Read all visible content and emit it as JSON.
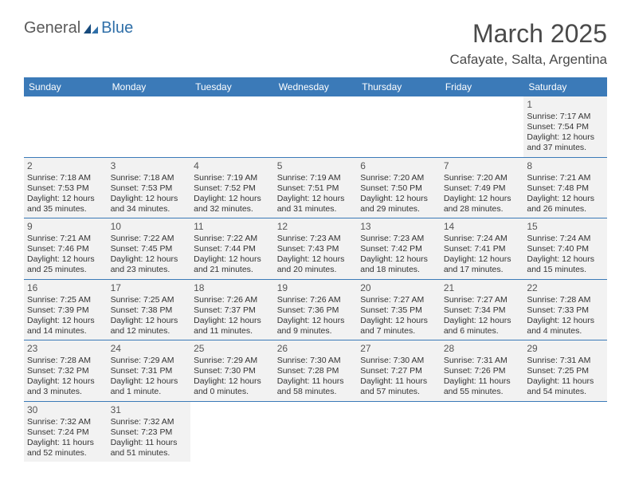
{
  "colors": {
    "header_bg": "#3b7ab8",
    "header_text": "#ffffff",
    "grid_line": "#3b7ab8",
    "cell_bg": "#f2f2f2",
    "page_bg": "#ffffff",
    "logo_general": "#5a5a5a",
    "logo_blue": "#2f6fa8",
    "title_color": "#4a4a4a",
    "text_color": "#333333"
  },
  "typography": {
    "title_fontsize": 32,
    "location_fontsize": 17,
    "dayheader_fontsize": 12,
    "cell_fontsize": 10.5,
    "daynum_fontsize": 12
  },
  "logo": {
    "general": "General",
    "blue": "Blue"
  },
  "title": "March 2025",
  "location": "Cafayate, Salta, Argentina",
  "day_names": [
    "Sunday",
    "Monday",
    "Tuesday",
    "Wednesday",
    "Thursday",
    "Friday",
    "Saturday"
  ],
  "weeks": [
    [
      null,
      null,
      null,
      null,
      null,
      null,
      {
        "d": "1",
        "sr": "Sunrise: 7:17 AM",
        "ss": "Sunset: 7:54 PM",
        "dl": "Daylight: 12 hours and 37 minutes."
      }
    ],
    [
      {
        "d": "2",
        "sr": "Sunrise: 7:18 AM",
        "ss": "Sunset: 7:53 PM",
        "dl": "Daylight: 12 hours and 35 minutes."
      },
      {
        "d": "3",
        "sr": "Sunrise: 7:18 AM",
        "ss": "Sunset: 7:53 PM",
        "dl": "Daylight: 12 hours and 34 minutes."
      },
      {
        "d": "4",
        "sr": "Sunrise: 7:19 AM",
        "ss": "Sunset: 7:52 PM",
        "dl": "Daylight: 12 hours and 32 minutes."
      },
      {
        "d": "5",
        "sr": "Sunrise: 7:19 AM",
        "ss": "Sunset: 7:51 PM",
        "dl": "Daylight: 12 hours and 31 minutes."
      },
      {
        "d": "6",
        "sr": "Sunrise: 7:20 AM",
        "ss": "Sunset: 7:50 PM",
        "dl": "Daylight: 12 hours and 29 minutes."
      },
      {
        "d": "7",
        "sr": "Sunrise: 7:20 AM",
        "ss": "Sunset: 7:49 PM",
        "dl": "Daylight: 12 hours and 28 minutes."
      },
      {
        "d": "8",
        "sr": "Sunrise: 7:21 AM",
        "ss": "Sunset: 7:48 PM",
        "dl": "Daylight: 12 hours and 26 minutes."
      }
    ],
    [
      {
        "d": "9",
        "sr": "Sunrise: 7:21 AM",
        "ss": "Sunset: 7:46 PM",
        "dl": "Daylight: 12 hours and 25 minutes."
      },
      {
        "d": "10",
        "sr": "Sunrise: 7:22 AM",
        "ss": "Sunset: 7:45 PM",
        "dl": "Daylight: 12 hours and 23 minutes."
      },
      {
        "d": "11",
        "sr": "Sunrise: 7:22 AM",
        "ss": "Sunset: 7:44 PM",
        "dl": "Daylight: 12 hours and 21 minutes."
      },
      {
        "d": "12",
        "sr": "Sunrise: 7:23 AM",
        "ss": "Sunset: 7:43 PM",
        "dl": "Daylight: 12 hours and 20 minutes."
      },
      {
        "d": "13",
        "sr": "Sunrise: 7:23 AM",
        "ss": "Sunset: 7:42 PM",
        "dl": "Daylight: 12 hours and 18 minutes."
      },
      {
        "d": "14",
        "sr": "Sunrise: 7:24 AM",
        "ss": "Sunset: 7:41 PM",
        "dl": "Daylight: 12 hours and 17 minutes."
      },
      {
        "d": "15",
        "sr": "Sunrise: 7:24 AM",
        "ss": "Sunset: 7:40 PM",
        "dl": "Daylight: 12 hours and 15 minutes."
      }
    ],
    [
      {
        "d": "16",
        "sr": "Sunrise: 7:25 AM",
        "ss": "Sunset: 7:39 PM",
        "dl": "Daylight: 12 hours and 14 minutes."
      },
      {
        "d": "17",
        "sr": "Sunrise: 7:25 AM",
        "ss": "Sunset: 7:38 PM",
        "dl": "Daylight: 12 hours and 12 minutes."
      },
      {
        "d": "18",
        "sr": "Sunrise: 7:26 AM",
        "ss": "Sunset: 7:37 PM",
        "dl": "Daylight: 12 hours and 11 minutes."
      },
      {
        "d": "19",
        "sr": "Sunrise: 7:26 AM",
        "ss": "Sunset: 7:36 PM",
        "dl": "Daylight: 12 hours and 9 minutes."
      },
      {
        "d": "20",
        "sr": "Sunrise: 7:27 AM",
        "ss": "Sunset: 7:35 PM",
        "dl": "Daylight: 12 hours and 7 minutes."
      },
      {
        "d": "21",
        "sr": "Sunrise: 7:27 AM",
        "ss": "Sunset: 7:34 PM",
        "dl": "Daylight: 12 hours and 6 minutes."
      },
      {
        "d": "22",
        "sr": "Sunrise: 7:28 AM",
        "ss": "Sunset: 7:33 PM",
        "dl": "Daylight: 12 hours and 4 minutes."
      }
    ],
    [
      {
        "d": "23",
        "sr": "Sunrise: 7:28 AM",
        "ss": "Sunset: 7:32 PM",
        "dl": "Daylight: 12 hours and 3 minutes."
      },
      {
        "d": "24",
        "sr": "Sunrise: 7:29 AM",
        "ss": "Sunset: 7:31 PM",
        "dl": "Daylight: 12 hours and 1 minute."
      },
      {
        "d": "25",
        "sr": "Sunrise: 7:29 AM",
        "ss": "Sunset: 7:30 PM",
        "dl": "Daylight: 12 hours and 0 minutes."
      },
      {
        "d": "26",
        "sr": "Sunrise: 7:30 AM",
        "ss": "Sunset: 7:28 PM",
        "dl": "Daylight: 11 hours and 58 minutes."
      },
      {
        "d": "27",
        "sr": "Sunrise: 7:30 AM",
        "ss": "Sunset: 7:27 PM",
        "dl": "Daylight: 11 hours and 57 minutes."
      },
      {
        "d": "28",
        "sr": "Sunrise: 7:31 AM",
        "ss": "Sunset: 7:26 PM",
        "dl": "Daylight: 11 hours and 55 minutes."
      },
      {
        "d": "29",
        "sr": "Sunrise: 7:31 AM",
        "ss": "Sunset: 7:25 PM",
        "dl": "Daylight: 11 hours and 54 minutes."
      }
    ],
    [
      {
        "d": "30",
        "sr": "Sunrise: 7:32 AM",
        "ss": "Sunset: 7:24 PM",
        "dl": "Daylight: 11 hours and 52 minutes."
      },
      {
        "d": "31",
        "sr": "Sunrise: 7:32 AM",
        "ss": "Sunset: 7:23 PM",
        "dl": "Daylight: 11 hours and 51 minutes."
      },
      null,
      null,
      null,
      null,
      null
    ]
  ]
}
